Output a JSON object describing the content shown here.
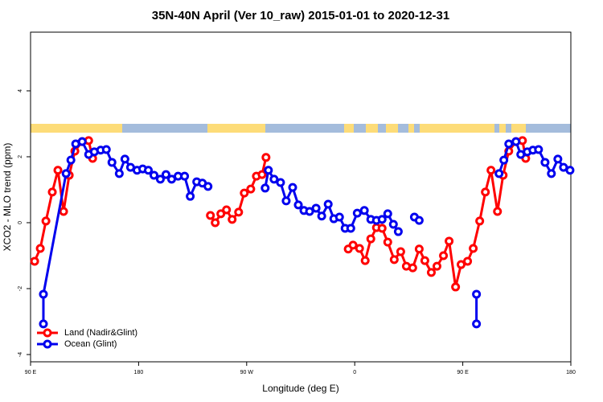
{
  "chart_data": {
    "type": "line",
    "title": "35N-40N April (Ver 10_raw)   2015-01-01 to 2020-12-31",
    "xlabel": "Longitude (deg E)",
    "ylabel": "XCO2 - MLO trend (ppm)",
    "xlim": [
      90,
      540
    ],
    "ylim": [
      -4.22,
      5.78
    ],
    "xticks": [
      {
        "value": 90,
        "label": "90 E"
      },
      180,
      {
        "value": 270,
        "label": "90 W"
      },
      {
        "value": 360,
        "label": "0"
      },
      {
        "value": 450,
        "label": "90 E"
      },
      {
        "value": 540,
        "label": "180"
      }
    ],
    "yticks": [
      -4,
      -2,
      0,
      2,
      4
    ],
    "legend": "bottom-left",
    "series": [
      {
        "name": "Land (Nadir&Glint)",
        "color": "#ff0000",
        "x": [
          93.4,
          98.1,
          102.8,
          108.1,
          112.8,
          117.5,
          122.2,
          126.9,
          133.0,
          138.4,
          141.7,
          null,
          239.8,
          243.8,
          248.5,
          253.2,
          257.9,
          263.3,
          268.0,
          273.4,
          278.1,
          282.8,
          286.1,
          null,
          354.6,
          358.6,
          364.0,
          368.7,
          373.4,
          378.1,
          382.8,
          387.5,
          392.9,
          398.3,
          403.0,
          408.3,
          413.7,
          418.4,
          423.8,
          428.5,
          433.9,
          438.6,
          444.0,
          448.6,
          454.0,
          458.7,
          464.1,
          468.8,
          473.5,
          478.9,
          483.6,
          488.3,
          494.3,
          499.7,
          502.4
        ],
        "values": [
          -1.17,
          -0.78,
          0.05,
          0.93,
          1.59,
          0.34,
          1.44,
          2.17,
          2.46,
          2.49,
          1.95,
          null,
          0.22,
          0.0,
          0.27,
          0.39,
          0.1,
          0.32,
          0.9,
          1.02,
          1.41,
          1.46,
          1.98,
          null,
          -0.8,
          -0.68,
          -0.78,
          -1.15,
          -0.49,
          -0.15,
          -0.17,
          -0.59,
          -1.12,
          -0.88,
          -1.32,
          -1.37,
          -0.8,
          -1.15,
          -1.51,
          -1.32,
          -1.0,
          -0.56,
          -1.95,
          -1.27,
          -1.17,
          -0.78,
          0.05,
          0.93,
          1.59,
          0.34,
          1.44,
          2.17,
          2.46,
          2.49,
          1.95
        ]
      },
      {
        "name": "Ocean (Glint)",
        "color": "#0000ee",
        "x": [
          100.7,
          100.7,
          119.6,
          123.6,
          127.6,
          133.0,
          138.4,
          143.1,
          148.4,
          153.1,
          157.8,
          163.9,
          168.6,
          173.3,
          178.7,
          183.4,
          188.1,
          192.8,
          198.1,
          202.8,
          207.5,
          212.9,
          218.3,
          223.0,
          228.4,
          233.1,
          237.8,
          null,
          285.4,
          288.1,
          292.8,
          298.2,
          302.9,
          308.3,
          313.0,
          317.7,
          322.4,
          327.8,
          332.5,
          337.9,
          342.6,
          347.3,
          352.0,
          356.7,
          362.1,
          368.0,
          373.4,
          378.1,
          382.8,
          387.5,
          392.2,
          396.3,
          null,
          409.7,
          413.7,
          null,
          461.4,
          461.4,
          null,
          480.2,
          484.2,
          488.3,
          494.3,
          498.3,
          503.7,
          508.4,
          513.1,
          518.5,
          523.8,
          529.2,
          533.9,
          539.3
        ],
        "values": [
          -3.07,
          -2.17,
          1.49,
          1.9,
          2.39,
          2.46,
          2.07,
          2.15,
          2.2,
          2.22,
          1.83,
          1.49,
          1.93,
          1.68,
          1.59,
          1.63,
          1.59,
          1.44,
          1.32,
          1.46,
          1.32,
          1.41,
          1.41,
          0.8,
          1.24,
          1.2,
          1.1,
          null,
          1.05,
          1.59,
          1.32,
          1.22,
          0.66,
          1.07,
          0.54,
          0.37,
          0.34,
          0.44,
          0.2,
          0.56,
          0.12,
          0.17,
          -0.17,
          -0.17,
          0.29,
          0.37,
          0.1,
          0.07,
          0.1,
          0.27,
          -0.05,
          -0.27,
          null,
          0.17,
          0.07,
          null,
          -2.17,
          -3.07,
          null,
          1.49,
          1.9,
          2.39,
          2.46,
          2.07,
          2.15,
          2.2,
          2.22,
          1.83,
          1.49,
          1.93,
          1.68,
          1.59
        ]
      }
    ]
  }
}
